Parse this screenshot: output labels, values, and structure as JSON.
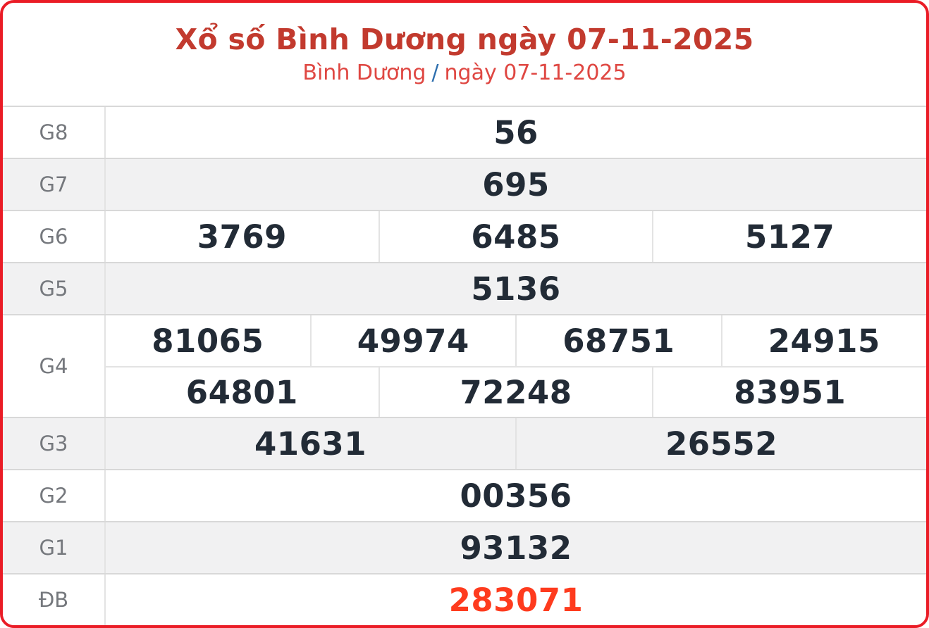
{
  "header": {
    "title": "Xổ số Bình Dương ngày 07-11-2025",
    "breadcrumb": {
      "region": "Bình Dương",
      "separator": "/",
      "date": "ngày 07-11-2025"
    }
  },
  "results": {
    "rows": [
      {
        "label": "G8",
        "groups": [
          [
            "56"
          ]
        ]
      },
      {
        "label": "G7",
        "groups": [
          [
            "695"
          ]
        ]
      },
      {
        "label": "G6",
        "groups": [
          [
            "3769",
            "6485",
            "5127"
          ]
        ]
      },
      {
        "label": "G5",
        "groups": [
          [
            "5136"
          ]
        ]
      },
      {
        "label": "G4",
        "groups": [
          [
            "81065",
            "49974",
            "68751",
            "24915"
          ],
          [
            "64801",
            "72248",
            "83951"
          ]
        ]
      },
      {
        "label": "G3",
        "groups": [
          [
            "41631",
            "26552"
          ]
        ]
      },
      {
        "label": "G2",
        "groups": [
          [
            "00356"
          ]
        ]
      },
      {
        "label": "G1",
        "groups": [
          [
            "93132"
          ]
        ]
      },
      {
        "label": "ĐB",
        "groups": [
          [
            "283071"
          ]
        ],
        "special": true
      }
    ]
  },
  "colors": {
    "border_red": "#ea1c26",
    "title_red": "#c23a2e",
    "subtitle_red": "#df4742",
    "separator_blue": "#2e6fae",
    "label_gray": "#75787d",
    "number_dark": "#222b36",
    "special_red": "#fe3b1e",
    "row_alt_bg": "#f1f1f2"
  }
}
